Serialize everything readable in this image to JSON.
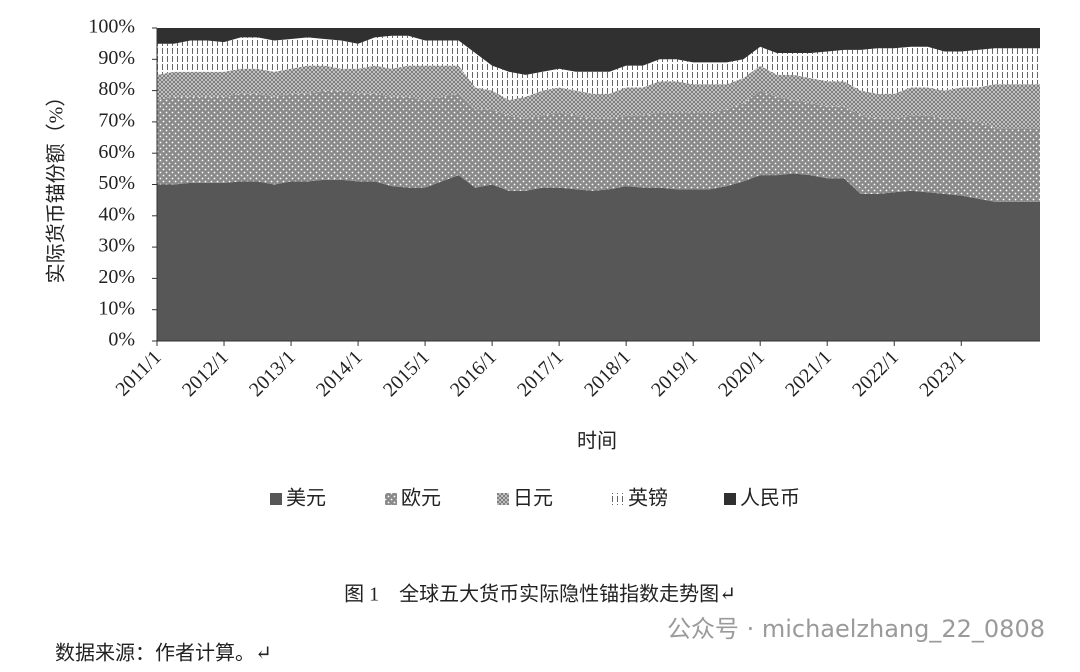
{
  "chart_data": {
    "type": "stacked-area",
    "y_axis_label": "实际货币锚份额（%）",
    "x_axis_label": "时间",
    "caption": "图 1　全球五大货币实际隐性锚指数走势图↵",
    "source": "数据来源：作者计算。↵",
    "watermark": "公众号 · michaelzhang_22_0808",
    "ylim": [
      0,
      100
    ],
    "yticks": [
      {
        "value": 0,
        "label": "0%"
      },
      {
        "value": 10,
        "label": "10%"
      },
      {
        "value": 20,
        "label": "20%"
      },
      {
        "value": 30,
        "label": "30%"
      },
      {
        "value": 40,
        "label": "40%"
      },
      {
        "value": 50,
        "label": "50%"
      },
      {
        "value": 60,
        "label": "60%"
      },
      {
        "value": 70,
        "label": "70%"
      },
      {
        "value": 80,
        "label": "80%"
      },
      {
        "value": 90,
        "label": "90%"
      },
      {
        "value": 100,
        "label": "100%"
      }
    ],
    "grid": false,
    "legend": "bottom",
    "categories": [
      "2011/1",
      null,
      null,
      null,
      "2012/1",
      null,
      null,
      null,
      "2013/1",
      null,
      null,
      null,
      "2014/1",
      null,
      null,
      null,
      "2015/1",
      null,
      null,
      null,
      "2016/1",
      null,
      null,
      null,
      "2017/1",
      null,
      null,
      null,
      "2018/1",
      null,
      null,
      null,
      "2019/1",
      null,
      null,
      null,
      "2020/1",
      null,
      null,
      null,
      "2021/1",
      null,
      null,
      null,
      "2022/1",
      null,
      null,
      null,
      "2023/1",
      null,
      null
    ],
    "series": [
      {
        "name": "美元",
        "color": "#575757",
        "values": [
          50,
          50,
          50.5,
          50.5,
          50.5,
          51,
          51,
          50,
          51,
          51,
          51.5,
          51.5,
          51,
          51,
          49.5,
          49,
          49,
          51,
          53,
          49,
          50,
          48,
          48,
          49,
          49,
          48.5,
          48,
          48.5,
          49.5,
          49,
          49,
          48.5,
          48.5,
          48.5,
          49.5,
          51,
          53,
          53,
          53.5,
          53,
          52,
          52,
          47,
          47,
          47.5,
          48,
          47.5,
          47,
          46.5,
          45.5,
          44.5
        ]
      },
      {
        "name": "欧元",
        "color": "#8a8a8a",
        "values": [
          27,
          28,
          27.5,
          27.5,
          27.5,
          28,
          28,
          28,
          28,
          28,
          28.5,
          28.5,
          28,
          28,
          28.5,
          29,
          28,
          27,
          26,
          25,
          24,
          24,
          23,
          23,
          24,
          23.5,
          23,
          22.5,
          22.5,
          23,
          24,
          24.5,
          24.5,
          24.5,
          24.5,
          25,
          27,
          25,
          23.5,
          23,
          23,
          23,
          25,
          24,
          23.5,
          24,
          24.5,
          24,
          24.5,
          24.5,
          23.5
        ]
      },
      {
        "name": "日元",
        "color": "#b4b4b4",
        "values": [
          8,
          8,
          8,
          8,
          8,
          8,
          8,
          8,
          8,
          9,
          8,
          7,
          8,
          9,
          9,
          10,
          11,
          10,
          9,
          7,
          6,
          5,
          7,
          8,
          8,
          8,
          8,
          8,
          9,
          9,
          10,
          10,
          9,
          9,
          8,
          8,
          8,
          7,
          8,
          8,
          8,
          8,
          8,
          8,
          8,
          9,
          9,
          9,
          10,
          11,
          14
        ]
      },
      {
        "name": "英镑",
        "color": "#ffffff",
        "values": [
          10,
          9,
          10,
          10,
          9.5,
          10,
          10,
          10,
          9.5,
          9,
          8.5,
          9,
          8,
          9,
          10.5,
          9.5,
          8,
          8,
          8,
          11,
          8,
          9,
          7,
          6,
          6,
          6,
          7,
          7,
          7,
          7,
          7,
          7,
          7,
          7,
          7,
          6,
          6,
          7,
          7,
          8,
          9.5,
          10,
          13,
          14.5,
          14.5,
          13,
          13,
          12.5,
          11.5,
          12,
          11.5
        ]
      },
      {
        "name": "人民币",
        "color": "#303030",
        "values": [
          5,
          5,
          4,
          4,
          4.5,
          3,
          3,
          4,
          3.5,
          3,
          3.5,
          4,
          5,
          3,
          2.5,
          2.5,
          4,
          4,
          4,
          8,
          12,
          14,
          15,
          14,
          13,
          14,
          14,
          14,
          12,
          12,
          10,
          10,
          11,
          11,
          11,
          10,
          6,
          8,
          8,
          8,
          7.5,
          7,
          7,
          6.5,
          6.5,
          6,
          6,
          7.5,
          7.5,
          7,
          6.5
        ]
      }
    ]
  }
}
